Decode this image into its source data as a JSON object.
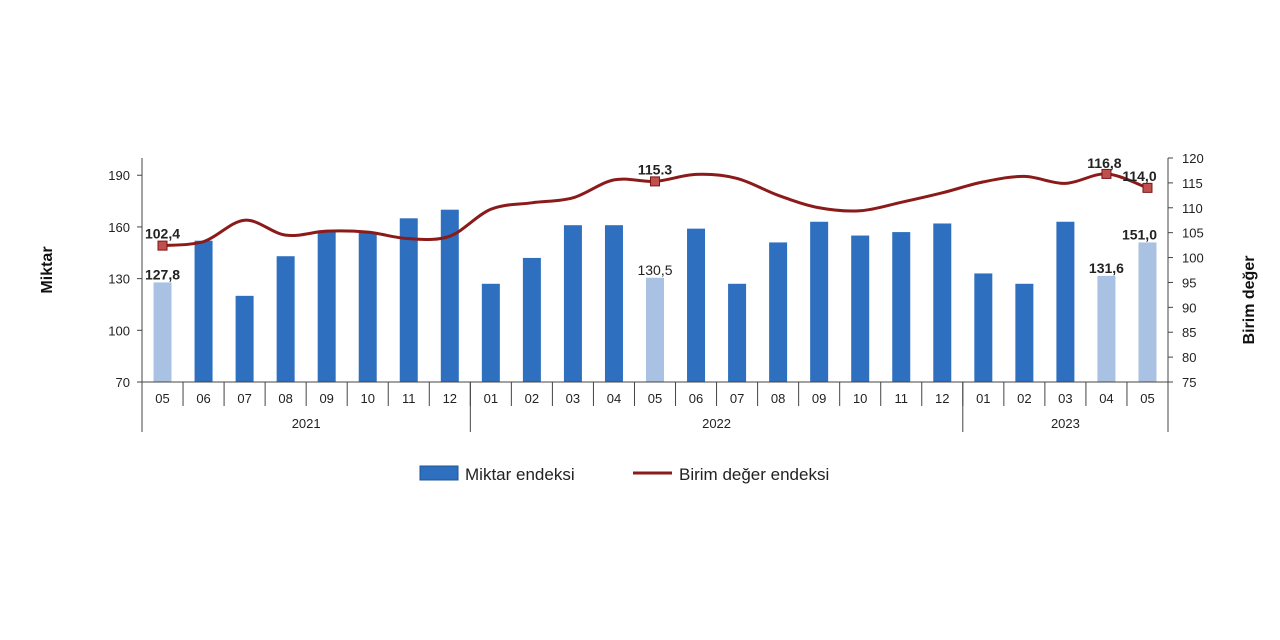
{
  "chart_data": {
    "type": "bar",
    "months": [
      "05",
      "06",
      "07",
      "08",
      "09",
      "10",
      "11",
      "12",
      "01",
      "02",
      "03",
      "04",
      "05",
      "06",
      "07",
      "08",
      "09",
      "10",
      "11",
      "12",
      "01",
      "02",
      "03",
      "04",
      "05"
    ],
    "years": [
      {
        "label": "2021",
        "count": 8
      },
      {
        "label": "2022",
        "count": 12
      },
      {
        "label": "2023",
        "count": 5
      }
    ],
    "series": [
      {
        "name": "Miktar endeksi",
        "kind": "bar",
        "axis": "left",
        "color": "#2e6fbf",
        "highlight_color": "#a9c2e3",
        "highlight_indices": [
          0,
          12,
          23,
          24
        ],
        "values": [
          127.8,
          152,
          120,
          143,
          158,
          157,
          165,
          170,
          127,
          142,
          161,
          161,
          130.5,
          159,
          127,
          151,
          163,
          155,
          157,
          162,
          133,
          127,
          163,
          131.6,
          151.0
        ]
      },
      {
        "name": "Birim değer endeksi",
        "kind": "line",
        "axis": "right",
        "color": "#8b1a1a",
        "values": [
          102.4,
          103.2,
          107.5,
          104.5,
          105.3,
          105.1,
          103.8,
          104.3,
          109.7,
          111,
          112,
          115.6,
          115.3,
          116.7,
          115.9,
          112.5,
          110,
          109.4,
          111.1,
          113,
          115.2,
          116.3,
          114.9,
          116.8,
          114.0
        ]
      }
    ],
    "data_labels": [
      {
        "series": 0,
        "index": 0,
        "text": "127,8"
      },
      {
        "series": 0,
        "index": 12,
        "text": "130,5"
      },
      {
        "series": 0,
        "index": 23,
        "text": "131,6"
      },
      {
        "series": 0,
        "index": 24,
        "text": "151,0"
      },
      {
        "series": 1,
        "index": 0,
        "text": "102,4"
      },
      {
        "series": 1,
        "index": 12,
        "text": "115.3"
      },
      {
        "series": 1,
        "index": 23,
        "text": "116,8"
      },
      {
        "series": 1,
        "index": 24,
        "text": "114,0"
      }
    ],
    "marker_indices": [
      0,
      12,
      23,
      24
    ],
    "y_left": {
      "label": "Miktar",
      "ticks": [
        70,
        100,
        130,
        160,
        190
      ],
      "range": [
        70,
        200
      ]
    },
    "y_right": {
      "label": "Birim değer",
      "ticks": [
        75,
        80,
        85,
        90,
        95,
        100,
        105,
        110,
        115,
        120
      ],
      "range": [
        75,
        120
      ]
    },
    "legend": {
      "position": "bottom",
      "items": [
        {
          "label": "Miktar endeksi",
          "color": "#2e6fbf",
          "shape": "bar"
        },
        {
          "label": "Birim değer endeksi",
          "color": "#8b1a1a",
          "shape": "line"
        }
      ]
    },
    "grid": false
  }
}
